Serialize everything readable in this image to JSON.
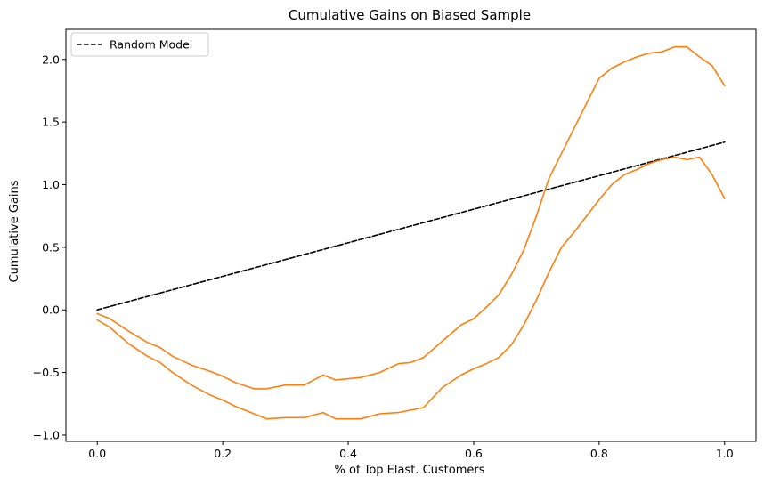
{
  "chart_data": {
    "type": "line",
    "title": "Cumulative Gains on Biased Sample",
    "xlabel": "% of Top Elast. Customers",
    "ylabel": "Cumulative Gains",
    "xlim": [
      -0.05,
      1.05
    ],
    "ylim": [
      -1.05,
      2.24
    ],
    "xticks": [
      0.0,
      0.2,
      0.4,
      0.6,
      0.8,
      1.0
    ],
    "xtick_labels": [
      "0.0",
      "0.2",
      "0.4",
      "0.6",
      "0.8",
      "1.0"
    ],
    "yticks": [
      -1.0,
      -0.5,
      0.0,
      0.5,
      1.0,
      1.5,
      2.0
    ],
    "ytick_labels": [
      "−1.0",
      "−0.5",
      "0.0",
      "0.5",
      "1.0",
      "1.5",
      "2.0"
    ],
    "grid": false,
    "legend": {
      "position": "top-left",
      "entries": [
        "Random Model"
      ]
    },
    "series": [
      {
        "name": "Random Model",
        "style": "dashed",
        "color": "#000000",
        "x": [
          0.0,
          1.0
        ],
        "y": [
          0.0,
          1.34
        ]
      },
      {
        "name": "",
        "style": "solid",
        "color": "#ff7f0e",
        "x": [
          0.0,
          0.02,
          0.05,
          0.08,
          0.1,
          0.12,
          0.15,
          0.18,
          0.2,
          0.22,
          0.25,
          0.27,
          0.3,
          0.33,
          0.36,
          0.38,
          0.4,
          0.42,
          0.45,
          0.48,
          0.5,
          0.52,
          0.55,
          0.58,
          0.6,
          0.62,
          0.64,
          0.66,
          0.68,
          0.7,
          0.72,
          0.74,
          0.76,
          0.78,
          0.8,
          0.82,
          0.84,
          0.86,
          0.88,
          0.9,
          0.92,
          0.94,
          0.96,
          0.98,
          1.0
        ],
        "y": [
          -0.03,
          -0.07,
          -0.17,
          -0.26,
          -0.3,
          -0.37,
          -0.44,
          -0.49,
          -0.53,
          -0.58,
          -0.63,
          -0.63,
          -0.6,
          -0.6,
          -0.52,
          -0.56,
          -0.55,
          -0.54,
          -0.5,
          -0.43,
          -0.42,
          -0.38,
          -0.25,
          -0.12,
          -0.07,
          0.02,
          0.12,
          0.28,
          0.48,
          0.75,
          1.05,
          1.25,
          1.45,
          1.65,
          1.85,
          1.93,
          1.98,
          2.02,
          2.05,
          2.06,
          2.1,
          2.1,
          2.02,
          1.95,
          1.79
        ]
      },
      {
        "name": "",
        "style": "solid",
        "color": "#ff7f0e",
        "x": [
          0.0,
          0.02,
          0.05,
          0.08,
          0.1,
          0.12,
          0.15,
          0.18,
          0.2,
          0.22,
          0.25,
          0.27,
          0.3,
          0.33,
          0.36,
          0.38,
          0.4,
          0.42,
          0.45,
          0.48,
          0.5,
          0.52,
          0.55,
          0.58,
          0.6,
          0.62,
          0.64,
          0.66,
          0.68,
          0.7,
          0.72,
          0.74,
          0.76,
          0.78,
          0.8,
          0.82,
          0.84,
          0.86,
          0.88,
          0.9,
          0.92,
          0.94,
          0.96,
          0.98,
          1.0
        ],
        "y": [
          -0.08,
          -0.14,
          -0.27,
          -0.37,
          -0.42,
          -0.5,
          -0.6,
          -0.68,
          -0.72,
          -0.77,
          -0.83,
          -0.87,
          -0.86,
          -0.86,
          -0.82,
          -0.87,
          -0.87,
          -0.87,
          -0.83,
          -0.82,
          -0.8,
          -0.78,
          -0.62,
          -0.52,
          -0.47,
          -0.43,
          -0.38,
          -0.28,
          -0.12,
          0.08,
          0.3,
          0.5,
          0.62,
          0.75,
          0.88,
          1.0,
          1.08,
          1.12,
          1.17,
          1.2,
          1.22,
          1.2,
          1.22,
          1.08,
          0.89
        ]
      }
    ]
  }
}
